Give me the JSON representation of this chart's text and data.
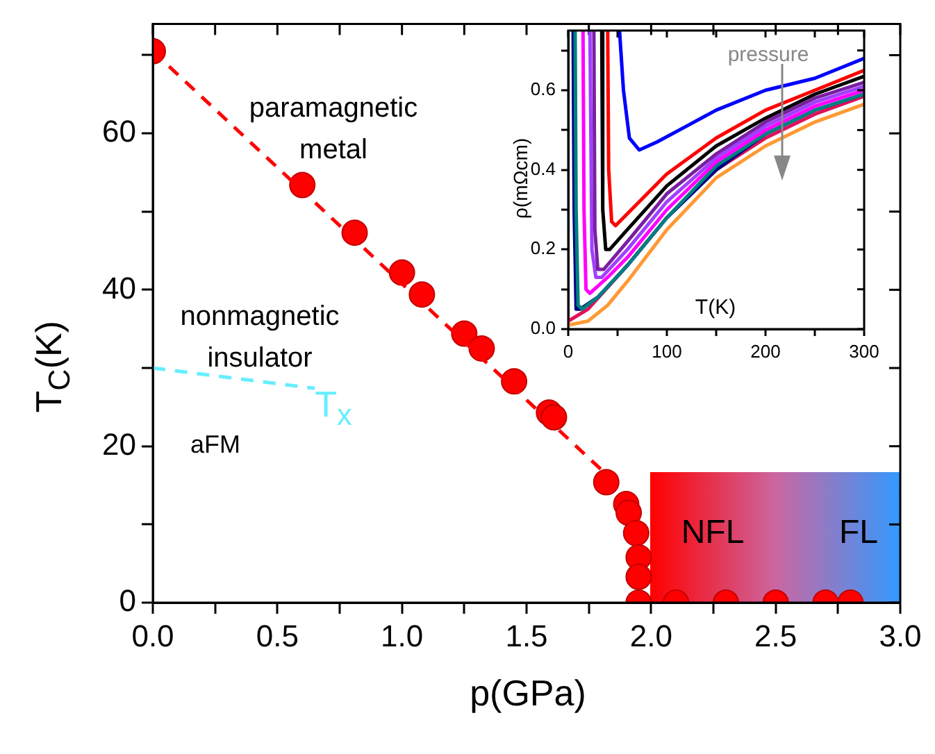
{
  "chart_data": [
    {
      "type": "scatter",
      "xlabel": "p(GPa)",
      "ylabel": "T$_{C}$(K)",
      "xlim": [
        0,
        3
      ],
      "ylim": [
        0,
        74
      ],
      "xticks": [
        {
          "value": 0,
          "label": "0.0"
        },
        {
          "value": 0.25,
          "label": null
        },
        {
          "value": 0.5,
          "label": "0.5"
        },
        {
          "value": 0.75,
          "label": null
        },
        {
          "value": 1,
          "label": "1.0"
        },
        {
          "value": 1.25,
          "label": null
        },
        {
          "value": 1.5,
          "label": "1.5"
        },
        {
          "value": 1.75,
          "label": null
        },
        {
          "value": 2,
          "label": "2.0"
        },
        {
          "value": 2.25,
          "label": null
        },
        {
          "value": 2.5,
          "label": "2.5"
        },
        {
          "value": 2.75,
          "label": null
        },
        {
          "value": 3,
          "label": "3.0"
        }
      ],
      "yticks": [
        0,
        {
          "value": 10,
          "label": null
        },
        20,
        {
          "value": 30,
          "label": null
        },
        40,
        {
          "value": 50,
          "label": null
        },
        60,
        {
          "value": 70,
          "label": null
        }
      ],
      "grid": false,
      "legend": false,
      "marker": "circle",
      "series": [
        {
          "type": "line",
          "color": "#ff0000",
          "marker": "none",
          "line_style": "dashed",
          "x": [
            0,
            1.8
          ],
          "values": [
            70.5,
            17
          ]
        },
        {
          "type": "line",
          "color": "#66eeff",
          "marker": "none",
          "line_style": "dashed",
          "x": [
            0,
            0.65
          ],
          "values": [
            30,
            27.4
          ]
        },
        {
          "color": "#ff0000",
          "x": [
            0,
            0.6,
            0.81,
            1.0,
            1.08,
            1.25,
            1.32,
            1.45,
            1.59,
            1.61,
            1.82,
            1.9,
            1.91,
            1.94,
            1.95,
            1.95,
            1.95,
            2.1,
            2.3,
            2.5,
            2.7,
            2.8
          ],
          "values": [
            70.5,
            53.4,
            47.3,
            42.2,
            39.4,
            34.4,
            32.5,
            28.3,
            24.3,
            23.7,
            15.4,
            12.6,
            11.5,
            8.9,
            5.8,
            3.3,
            0,
            0,
            0,
            0,
            0,
            0
          ]
        }
      ],
      "annotations": [
        "paramagnetic metal",
        "nonmagnetic insulator",
        "aFM",
        "T$_{x}$",
        "NFL",
        "FL"
      ]
    },
    {
      "type": "line",
      "xlabel": "T(K)",
      "ylabel": "ρ(mΩcm)",
      "xlim": [
        0,
        300
      ],
      "ylim": [
        0,
        0.75
      ],
      "xticks": [
        0,
        {
          "value": 50,
          "label": null
        },
        100,
        {
          "value": 150,
          "label": null
        },
        200,
        {
          "value": 250,
          "label": null
        },
        300
      ],
      "yticks": [
        {
          "value": 0,
          "label": "0.0"
        },
        {
          "value": 0.1,
          "label": null
        },
        {
          "value": 0.2,
          "label": "0.2"
        },
        {
          "value": 0.3,
          "label": null
        },
        {
          "value": 0.4,
          "label": "0.4"
        },
        {
          "value": 0.5,
          "label": null
        },
        {
          "value": 0.6,
          "label": "0.6"
        },
        {
          "value": 0.7,
          "label": null
        }
      ],
      "grid": false,
      "legend": false,
      "marker": "none",
      "line_style": "solid",
      "series": [
        {
          "color": "#0000ff",
          "x": [
            52,
            56,
            62,
            72,
            90,
            120,
            150,
            200,
            250,
            300
          ],
          "values": [
            0.75,
            0.6,
            0.48,
            0.45,
            0.47,
            0.51,
            0.55,
            0.6,
            0.63,
            0.68
          ]
        },
        {
          "color": "#ff0000",
          "x": [
            40,
            41,
            44,
            48,
            60,
            100,
            150,
            200,
            250,
            300
          ],
          "values": [
            0.75,
            0.4,
            0.27,
            0.26,
            0.29,
            0.39,
            0.48,
            0.55,
            0.6,
            0.65
          ]
        },
        {
          "color": "#000000",
          "x": [
            34,
            35,
            38,
            42,
            60,
            100,
            150,
            200,
            250,
            300
          ],
          "values": [
            0.75,
            0.3,
            0.2,
            0.2,
            0.25,
            0.36,
            0.46,
            0.53,
            0.59,
            0.635
          ]
        },
        {
          "color": "#7a1fa2",
          "x": [
            26,
            27,
            30,
            36,
            60,
            100,
            150,
            200,
            250,
            300
          ],
          "values": [
            0.75,
            0.25,
            0.15,
            0.15,
            0.22,
            0.34,
            0.44,
            0.52,
            0.58,
            0.62
          ]
        },
        {
          "color": "#a040ff",
          "x": [
            22,
            24,
            28,
            34,
            60,
            100,
            150,
            200,
            250,
            300
          ],
          "values": [
            0.75,
            0.2,
            0.13,
            0.13,
            0.2,
            0.32,
            0.43,
            0.51,
            0.57,
            0.61
          ]
        },
        {
          "color": "#ff00ff",
          "x": [
            15,
            16,
            18,
            22,
            40,
            60,
            100,
            150,
            200,
            250,
            300
          ],
          "values": [
            0.75,
            0.3,
            0.1,
            0.09,
            0.13,
            0.18,
            0.3,
            0.42,
            0.5,
            0.56,
            0.6
          ]
        },
        {
          "color": "#008080",
          "x": [
            7,
            8,
            10,
            14,
            30,
            60,
            100,
            150,
            200,
            250,
            300
          ],
          "values": [
            0.75,
            0.3,
            0.06,
            0.05,
            0.08,
            0.16,
            0.28,
            0.41,
            0.49,
            0.55,
            0.59
          ]
        },
        {
          "color": "#000080",
          "x": [
            5,
            6,
            8,
            12,
            30,
            60,
            100,
            150,
            200,
            250,
            300
          ],
          "values": [
            0.75,
            0.3,
            0.05,
            0.05,
            0.08,
            0.16,
            0.28,
            0.4,
            0.49,
            0.55,
            0.59
          ]
        },
        {
          "color": "#e0105a",
          "x": [
            0,
            20,
            60,
            100,
            150,
            200,
            250,
            300
          ],
          "values": [
            0.02,
            0.05,
            0.16,
            0.28,
            0.4,
            0.48,
            0.54,
            0.585
          ]
        },
        {
          "color": "#ff9933",
          "x": [
            0,
            20,
            40,
            60,
            100,
            150,
            200,
            250,
            300
          ],
          "values": [
            0.01,
            0.02,
            0.06,
            0.12,
            0.25,
            0.38,
            0.46,
            0.52,
            0.565
          ]
        }
      ],
      "annotations": [
        "pressure"
      ]
    }
  ]
}
